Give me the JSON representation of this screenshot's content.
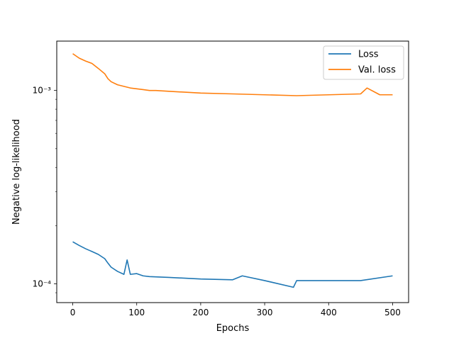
{
  "chart_data": {
    "type": "line",
    "title": "",
    "xlabel": "Epochs",
    "ylabel": "Negative log-likelihood",
    "xlim": [
      -25,
      525
    ],
    "ylim": [
      8e-05,
      0.0018
    ],
    "yscale": "log",
    "grid": false,
    "legend_position": "top-right",
    "x_ticks": [
      0,
      100,
      200,
      300,
      400,
      500
    ],
    "x_tick_labels": [
      "0",
      "100",
      "200",
      "300",
      "400",
      "500"
    ],
    "y_ticks": [
      0.0001,
      0.001
    ],
    "y_tick_labels": [
      "10⁻⁴",
      "10⁻³"
    ],
    "series": [
      {
        "name": "Loss",
        "color": "#1f77b4",
        "x": [
          0,
          10,
          20,
          30,
          40,
          50,
          55,
          60,
          70,
          80,
          85,
          90,
          100,
          110,
          120,
          150,
          200,
          250,
          265,
          300,
          345,
          350,
          400,
          450,
          500
        ],
        "y": [
          0.000165,
          0.000158,
          0.000152,
          0.000147,
          0.000142,
          0.000135,
          0.000128,
          0.000122,
          0.000116,
          0.000112,
          0.000133,
          0.000112,
          0.000113,
          0.00011,
          0.000109,
          0.000108,
          0.000106,
          0.000105,
          0.00011,
          0.000104,
          9.6e-05,
          0.000104,
          0.000104,
          0.000104,
          0.00011
        ]
      },
      {
        "name": "Val. loss",
        "color": "#ff7f0e",
        "x": [
          0,
          10,
          20,
          30,
          40,
          50,
          55,
          60,
          70,
          80,
          90,
          100,
          110,
          120,
          130,
          150,
          200,
          250,
          300,
          350,
          400,
          450,
          460,
          480,
          500
        ],
        "y": [
          0.00155,
          0.00147,
          0.00142,
          0.00138,
          0.0013,
          0.00122,
          0.00115,
          0.00111,
          0.00107,
          0.00105,
          0.00103,
          0.00102,
          0.00101,
          0.001,
          0.001,
          0.00099,
          0.00097,
          0.00096,
          0.00095,
          0.00094,
          0.00095,
          0.00096,
          0.00103,
          0.00095,
          0.00095
        ]
      }
    ]
  }
}
